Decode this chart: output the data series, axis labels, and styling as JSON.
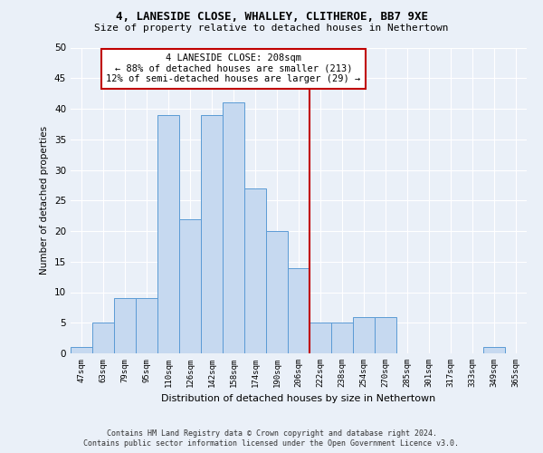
{
  "title1": "4, LANESIDE CLOSE, WHALLEY, CLITHEROE, BB7 9XE",
  "title2": "Size of property relative to detached houses in Nethertown",
  "xlabel": "Distribution of detached houses by size in Nethertown",
  "ylabel": "Number of detached properties",
  "categories": [
    "47sqm",
    "63sqm",
    "79sqm",
    "95sqm",
    "110sqm",
    "126sqm",
    "142sqm",
    "158sqm",
    "174sqm",
    "190sqm",
    "206sqm",
    "222sqm",
    "238sqm",
    "254sqm",
    "270sqm",
    "285sqm",
    "301sqm",
    "317sqm",
    "333sqm",
    "349sqm",
    "365sqm"
  ],
  "values": [
    1,
    5,
    9,
    9,
    39,
    22,
    39,
    41,
    27,
    20,
    14,
    5,
    5,
    6,
    6,
    0,
    0,
    0,
    0,
    1,
    0
  ],
  "bar_color": "#c6d9f0",
  "bar_edge_color": "#5b9bd5",
  "annotation_text": "4 LANESIDE CLOSE: 208sqm\n← 88% of detached houses are smaller (213)\n12% of semi-detached houses are larger (29) →",
  "annotation_box_color": "#ffffff",
  "annotation_box_edge": "#c00000",
  "line_color": "#c00000",
  "footer1": "Contains HM Land Registry data © Crown copyright and database right 2024.",
  "footer2": "Contains public sector information licensed under the Open Government Licence v3.0.",
  "ylim": [
    0,
    50
  ],
  "yticks": [
    0,
    5,
    10,
    15,
    20,
    25,
    30,
    35,
    40,
    45,
    50
  ],
  "bg_color": "#eaf0f8",
  "grid_color": "#ffffff",
  "red_line_x": 10.5
}
